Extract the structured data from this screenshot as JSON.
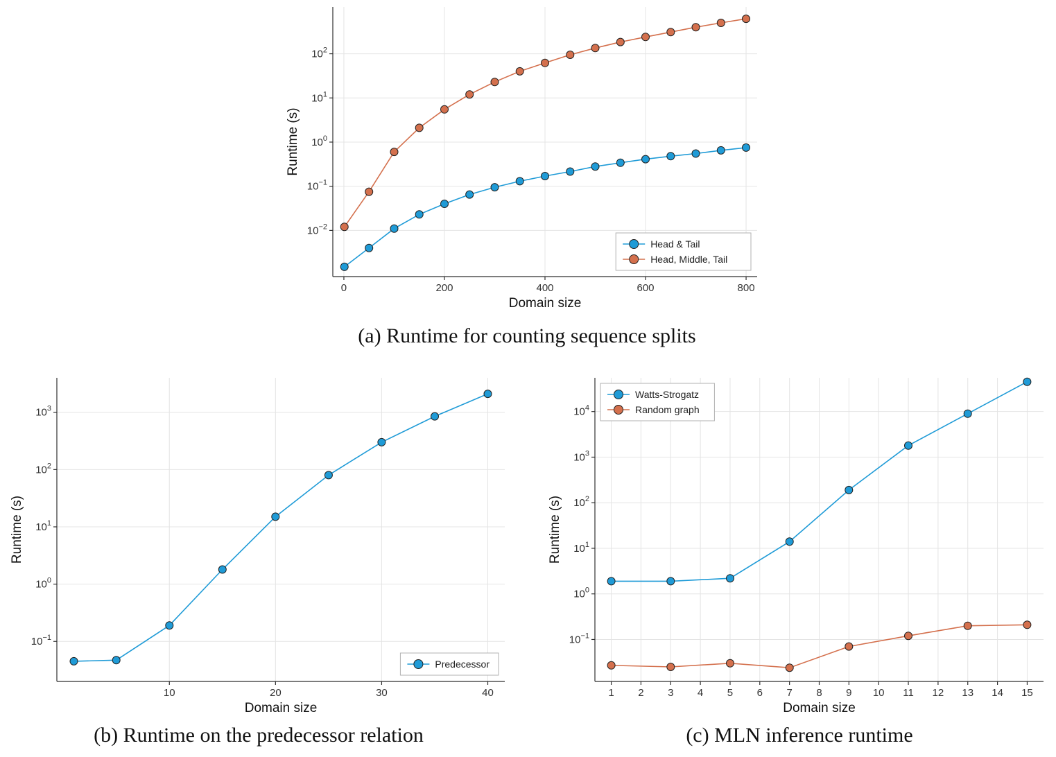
{
  "captions": {
    "a": "(a) Runtime for counting sequence splits",
    "b": "(b) Runtime on the predecessor relation",
    "c": "(c) MLN inference runtime"
  },
  "colors": {
    "series_blue": "#1f9bd7",
    "series_orange": "#d4704d",
    "marker_stroke": "#222222",
    "grid": "#e4e4e4",
    "axis": "#2f2f2f"
  },
  "chart_data": [
    {
      "id": "a",
      "type": "line",
      "title": "",
      "xlabel": "Domain size",
      "ylabel": "Runtime (s)",
      "x_ticks": [
        0,
        200,
        400,
        600,
        800
      ],
      "xlim": [
        -22,
        822
      ],
      "y_scale": "log",
      "y_tick_exponents": [
        -2,
        -1,
        0,
        1,
        2
      ],
      "ylim": [
        0.0009,
        1150
      ],
      "grid": true,
      "legend_position": "bottom-right",
      "series": [
        {
          "name": "Head & Tail",
          "color": "#1f9bd7",
          "marker": "circle",
          "x": [
            1,
            50,
            100,
            150,
            200,
            250,
            300,
            350,
            400,
            450,
            500,
            550,
            600,
            650,
            700,
            750,
            800
          ],
          "y": [
            0.0015,
            0.004,
            0.011,
            0.023,
            0.04,
            0.065,
            0.095,
            0.13,
            0.17,
            0.215,
            0.28,
            0.34,
            0.41,
            0.48,
            0.55,
            0.65,
            0.75
          ]
        },
        {
          "name": "Head, Middle, Tail",
          "color": "#d4704d",
          "marker": "circle",
          "x": [
            1,
            50,
            100,
            150,
            200,
            250,
            300,
            350,
            400,
            450,
            500,
            550,
            600,
            650,
            700,
            750,
            800
          ],
          "y": [
            0.012,
            0.075,
            0.6,
            2.1,
            5.5,
            12,
            23,
            40,
            62,
            95,
            135,
            185,
            240,
            310,
            400,
            500,
            620
          ]
        }
      ]
    },
    {
      "id": "b",
      "type": "line",
      "title": "",
      "xlabel": "Domain size",
      "ylabel": "Runtime (s)",
      "x_ticks": [
        10,
        20,
        30,
        40
      ],
      "xlim": [
        -0.6,
        41.6
      ],
      "y_scale": "log",
      "y_tick_exponents": [
        -1,
        0,
        1,
        2,
        3
      ],
      "ylim": [
        0.02,
        4000
      ],
      "grid": true,
      "legend_position": "bottom-right",
      "series": [
        {
          "name": "Predecessor",
          "color": "#1f9bd7",
          "marker": "circle",
          "x": [
            1,
            5,
            10,
            15,
            20,
            25,
            30,
            35,
            40
          ],
          "y": [
            0.045,
            0.047,
            0.19,
            1.8,
            15,
            80,
            300,
            850,
            2100
          ]
        }
      ]
    },
    {
      "id": "c",
      "type": "line",
      "title": "",
      "xlabel": "Domain size",
      "ylabel": "Runtime (s)",
      "x_ticks": [
        1,
        2,
        3,
        4,
        5,
        6,
        7,
        8,
        9,
        10,
        11,
        12,
        13,
        14,
        15
      ],
      "xlim": [
        0.45,
        15.55
      ],
      "y_scale": "log",
      "y_tick_exponents": [
        -1,
        0,
        1,
        2,
        3,
        4
      ],
      "ylim": [
        0.012,
        55000
      ],
      "grid": true,
      "legend_position": "top-left",
      "series": [
        {
          "name": "Watts-Strogatz",
          "color": "#1f9bd7",
          "marker": "circle",
          "x": [
            1,
            3,
            5,
            7,
            9,
            11,
            13,
            15
          ],
          "y": [
            1.9,
            1.9,
            2.2,
            14,
            190,
            1800,
            9000,
            45000
          ]
        },
        {
          "name": "Random graph",
          "color": "#d4704d",
          "marker": "circle",
          "x": [
            1,
            3,
            5,
            7,
            9,
            11,
            13,
            15
          ],
          "y": [
            0.027,
            0.025,
            0.03,
            0.024,
            0.07,
            0.12,
            0.2,
            0.21
          ]
        }
      ]
    }
  ]
}
